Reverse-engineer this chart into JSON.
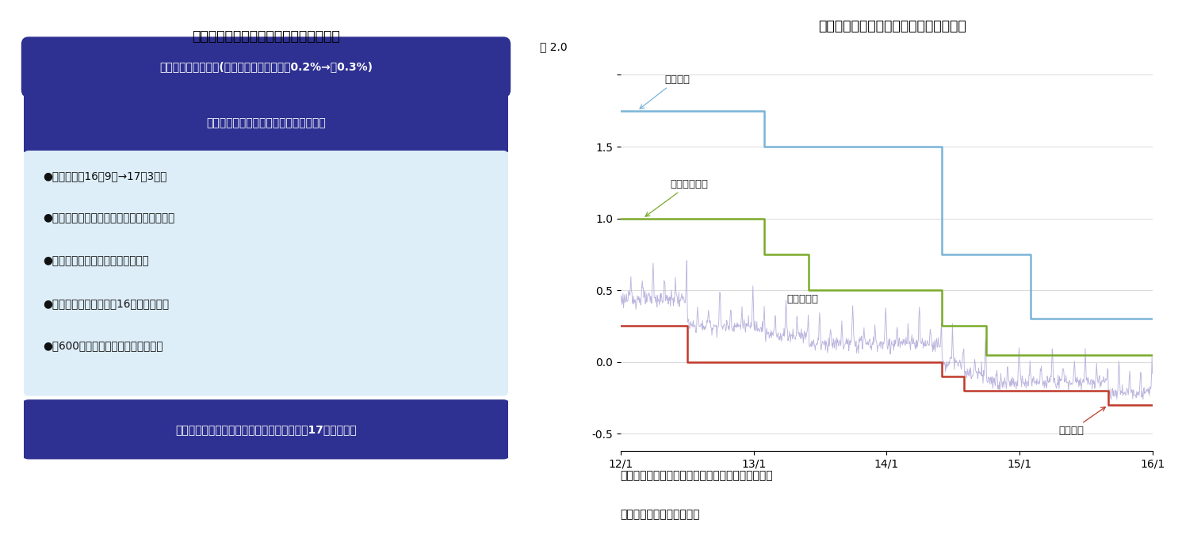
{
  "title1": "図表１　１５年１２月理事会の決定内容",
  "title2": "図表２　ＥＣＢの政策金利とＥＯＮＩＡ",
  "box1_color": "#2e3192",
  "box1_text": "政策金利の引き下げ(中銀預金金利マイナス0.2%→同0.3%)",
  "box2_color": "#2e3192",
  "box2_text": "資産買入れプログラム（ＡＰＰ）の拡張",
  "bullet_bg_color": "#ddeef8",
  "bullets": [
    "●期限延長（16年9月→17年3月）",
    "●対象資産拡大（新たに地方債等を加える）",
    "●償還資金の元本の再投資を行なう",
    "●技術的パラメーターを16年春に見直す",
    "●月600億ユーロの買入れ規模は維持"
  ],
  "box3_color": "#2e3192",
  "box3_text": "固定金利・金額無制限の資金供給期限延長（17年末まで）",
  "note": "（注）ＥＯＮＩＡ＝ユーロ圏無担保翌日物平均金利",
  "source": "（資料）ＥＣＢ、ＥＭＭＩ",
  "loan_rate_color": "#7ab4d8",
  "repo_rate_color": "#7aaa2a",
  "deposit_rate_color": "#c0392b",
  "eonia_color": "#b0a8d8",
  "annotation_loan": "貸出金利",
  "annotation_repo": "主要レポ金利",
  "annotation_eonia": "ＥＯＮＩＡ",
  "annotation_deposit": "預金金利",
  "xtick_labels": [
    "12/1",
    "13/1",
    "14/1",
    "15/1",
    "16/1"
  ]
}
